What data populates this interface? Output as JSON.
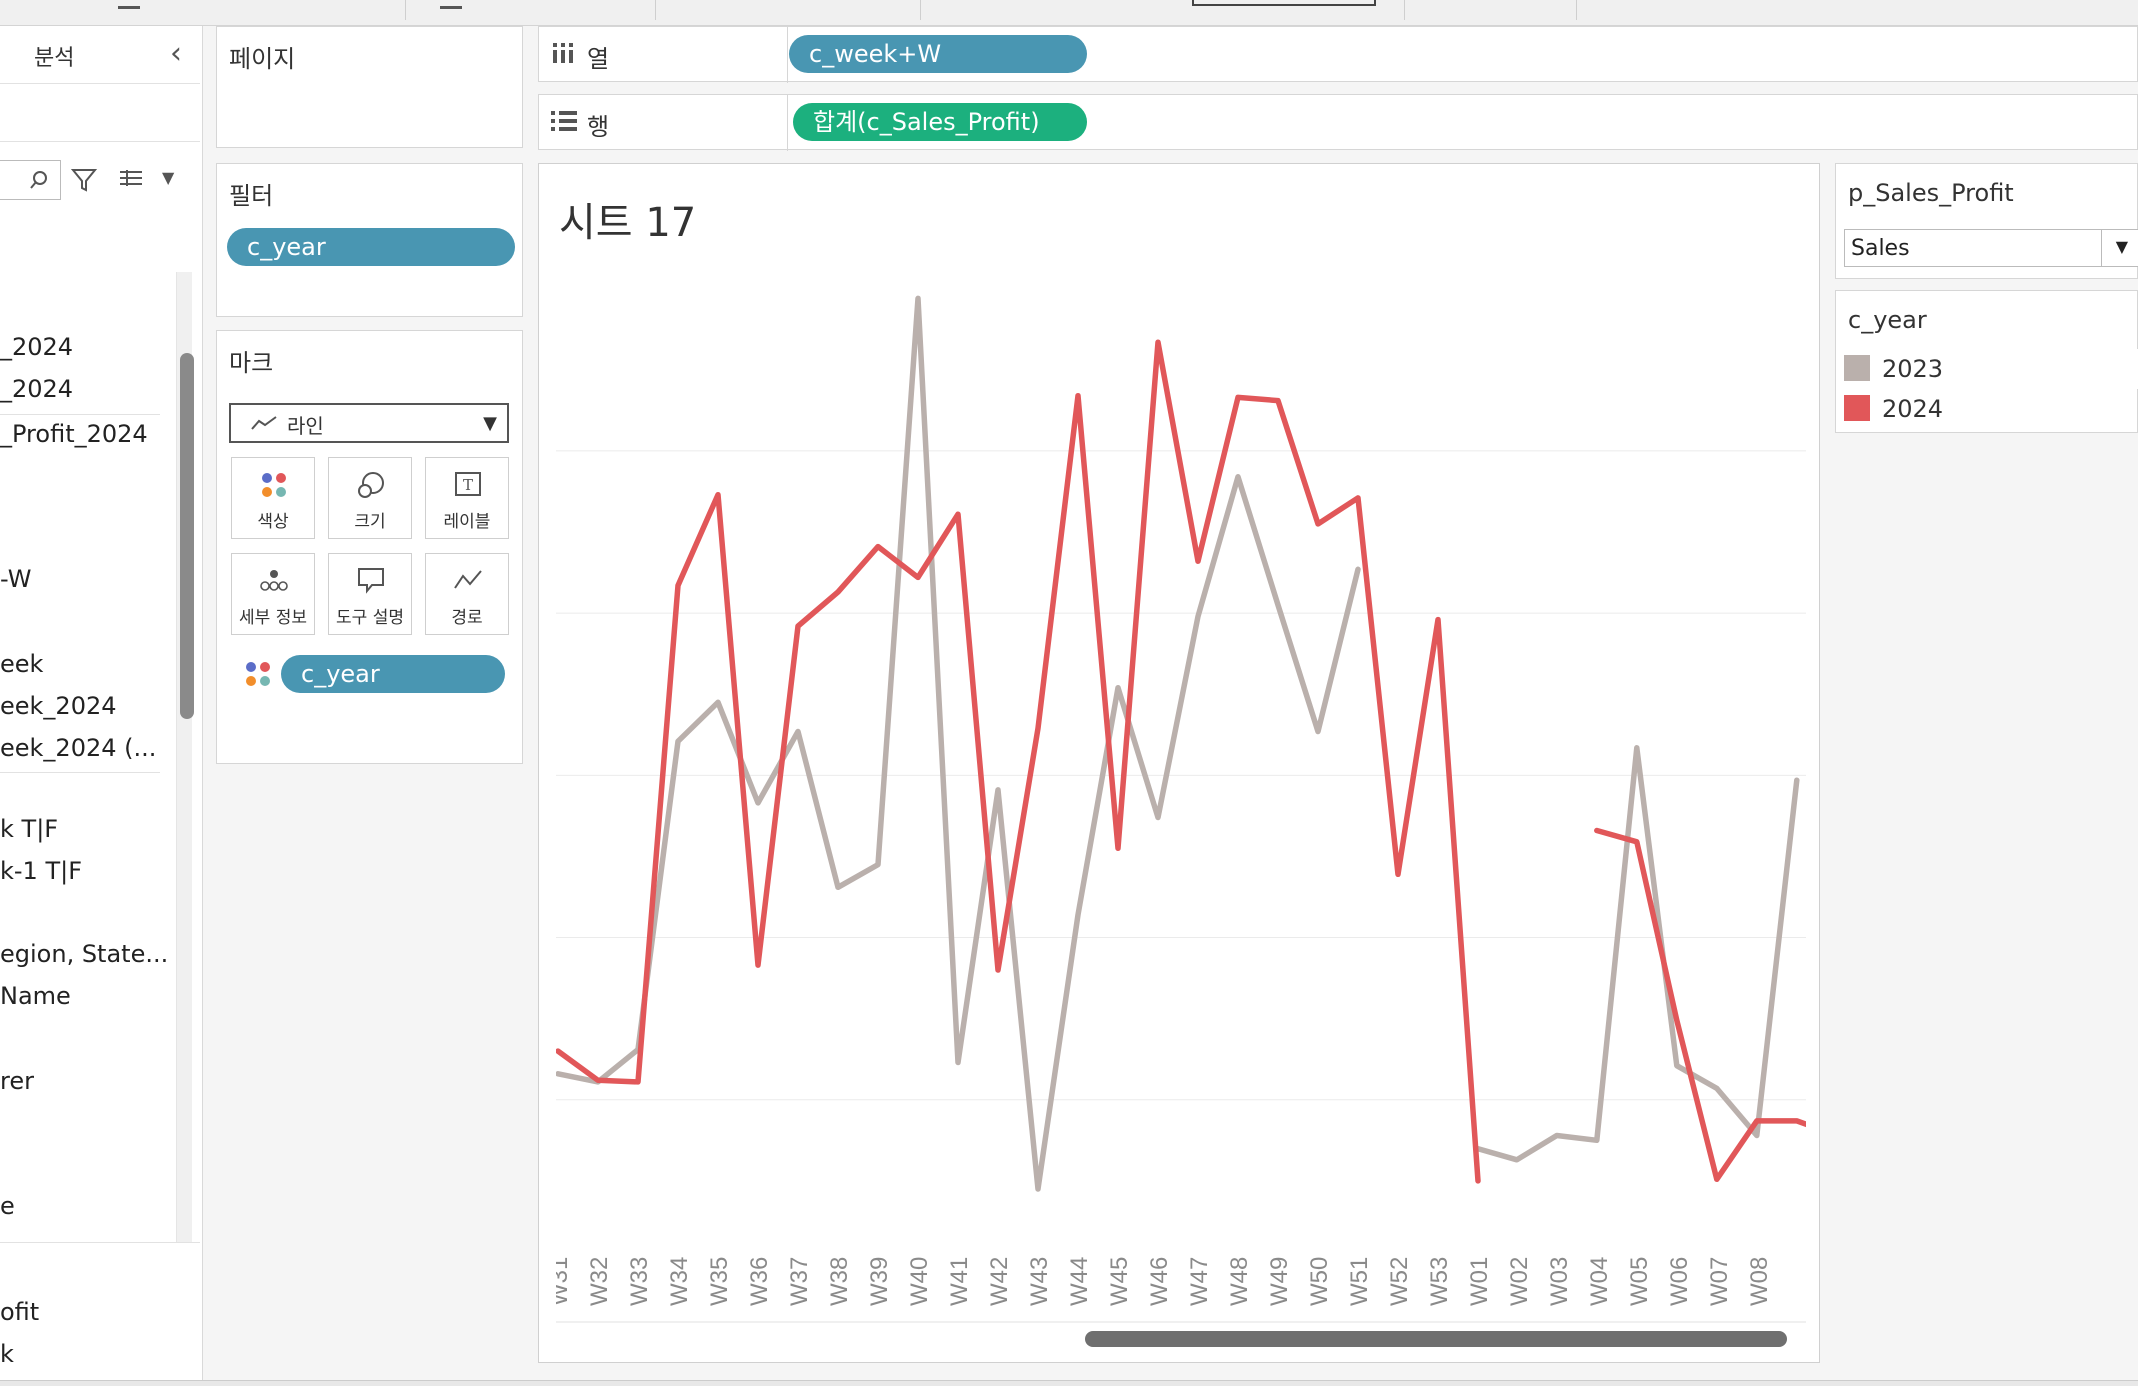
{
  "left_pane": {
    "analysis_tab_label": "분석",
    "fields": [
      "_2024",
      "_2024",
      "_Profit_2024",
      "-W",
      "eek",
      "eek_2024",
      "eek_2024 (...",
      "k T|F",
      "k-1 T|F",
      "egion, State...",
      "Name",
      "rer",
      "e",
      "ofit",
      "k"
    ]
  },
  "pages_shelf": {
    "label": "페이지"
  },
  "columns_shelf": {
    "label": "열",
    "pill": "c_week+W"
  },
  "rows_shelf": {
    "label": "행",
    "pill": "합계(c_Sales_Profit)"
  },
  "filters_card": {
    "title": "필터",
    "pill": "c_year"
  },
  "marks_card": {
    "title": "마크",
    "mark_type": "라인",
    "buttons": [
      "색상",
      "크기",
      "레이블",
      "세부 정보",
      "도구 설명",
      "경로"
    ],
    "color_pill": "c_year"
  },
  "sheet": {
    "title": "시트 17"
  },
  "parameter": {
    "name": "p_Sales_Profit",
    "value": "Sales"
  },
  "legend": {
    "title": "c_year",
    "items": [
      {
        "label": "2023",
        "color": "#bab0ac"
      },
      {
        "label": "2024",
        "color": "#e15759"
      }
    ]
  },
  "chart_data": {
    "type": "line",
    "categories": [
      "W31",
      "W32",
      "W33",
      "W34",
      "W35",
      "W36",
      "W37",
      "W38",
      "W39",
      "W40",
      "W41",
      "W42",
      "W43",
      "W44",
      "W45",
      "W46",
      "W47",
      "W48",
      "W49",
      "W50",
      "W51",
      "W52",
      "W53",
      "W01",
      "W02",
      "W03",
      "W04",
      "W05",
      "W06",
      "W07",
      "W08"
    ],
    "series": [
      {
        "name": "2023",
        "color": "#bab0ac",
        "segments": [
          [
            [
              0,
              0.66
            ],
            [
              1,
              0.61
            ],
            [
              2,
              0.81
            ],
            [
              3,
              2.71
            ],
            [
              4,
              2.95
            ],
            [
              5,
              2.33
            ],
            [
              6,
              2.77
            ],
            [
              7,
              1.81
            ],
            [
              8,
              1.95
            ],
            [
              9,
              5.44
            ],
            [
              10,
              0.73
            ],
            [
              11,
              2.41
            ],
            [
              12,
              -0.05
            ],
            [
              13,
              1.64
            ],
            [
              14,
              3.04
            ],
            [
              15,
              2.24
            ],
            [
              16,
              3.48
            ],
            [
              17,
              4.34
            ],
            [
              18,
              3.55
            ],
            [
              19,
              2.77
            ],
            [
              20,
              3.77
            ]
          ],
          [
            [
              22.97,
              0.2
            ],
            [
              23.97,
              0.13
            ],
            [
              24.97,
              0.28
            ],
            [
              25.97,
              0.25
            ],
            [
              26.97,
              2.67
            ],
            [
              27.97,
              0.71
            ],
            [
              28.97,
              0.57
            ],
            [
              29.97,
              0.28
            ],
            [
              30.97,
              2.47
            ]
          ]
        ]
      },
      {
        "name": "2024",
        "color": "#e15759",
        "segments": [
          [
            [
              0,
              0.8
            ],
            [
              1,
              0.62
            ],
            [
              2,
              0.61
            ],
            [
              3,
              3.67
            ],
            [
              4,
              4.23
            ],
            [
              5,
              1.33
            ],
            [
              6,
              3.42
            ],
            [
              7,
              3.63
            ],
            [
              8,
              3.91
            ],
            [
              9,
              3.72
            ],
            [
              10,
              4.11
            ],
            [
              11,
              1.3
            ],
            [
              12,
              2.79
            ],
            [
              13,
              4.84
            ],
            [
              14,
              2.05
            ],
            [
              15,
              5.17
            ],
            [
              16,
              3.82
            ],
            [
              17,
              4.83
            ],
            [
              18,
              4.81
            ],
            [
              19,
              4.05
            ],
            [
              20,
              4.21
            ],
            [
              21,
              1.89
            ],
            [
              22,
              3.46
            ],
            [
              23,
              0.0
            ]
          ],
          [
            [
              25.97,
              2.16
            ],
            [
              26.97,
              2.09
            ],
            [
              27.97,
              0.99
            ],
            [
              28.97,
              0.01
            ],
            [
              29.97,
              0.37
            ],
            [
              30.97,
              0.37
            ],
            [
              31.77,
              0.3
            ]
          ]
        ]
      }
    ]
  }
}
